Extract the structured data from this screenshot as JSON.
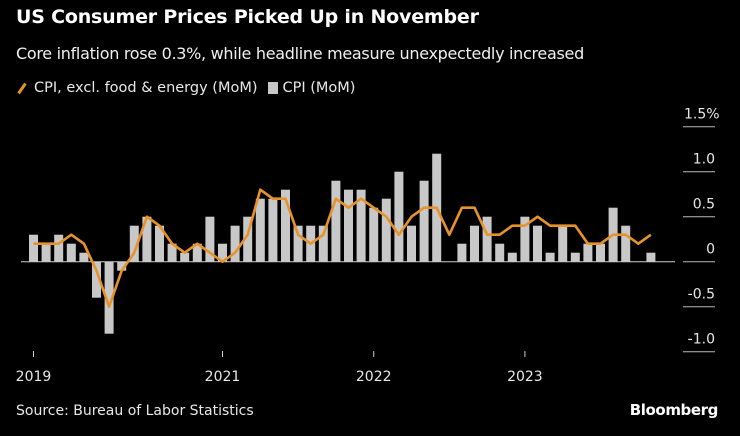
{
  "header": {
    "title": "US Consumer Prices Picked Up in November",
    "subtitle": "Core inflation rose 0.3%, while headline measure unexpectedly increased"
  },
  "footer": {
    "source": "Source: Bureau of Labor Statistics",
    "logo": "Bloomberg"
  },
  "colors": {
    "background": "#000000",
    "bars": "#c8c8c8",
    "line": "#e8922a"
  },
  "chart_data": {
    "type": "bar+line",
    "title": "US Consumer Prices Picked Up in November",
    "subtitle": "Core inflation rose 0.3%, while headline measure unexpectedly increased",
    "legend_placement": "top-left",
    "grid": false,
    "y_axis_side": "right",
    "ylim": [
      -1.0,
      1.5
    ],
    "yticks": [
      {
        "value": 1.5,
        "label": "1.5%"
      },
      {
        "value": 1.0,
        "label": "1.0"
      },
      {
        "value": 0.5,
        "label": "0.5"
      },
      {
        "value": 0,
        "label": "0"
      },
      {
        "value": -0.5,
        "label": "-0.5"
      },
      {
        "value": -1.0,
        "label": "-1.0"
      }
    ],
    "xticks": [
      {
        "x": "2019-10",
        "label": "2019"
      },
      {
        "x": "2021-01",
        "label": "2021"
      },
      {
        "x": "2022-01",
        "label": "2022"
      },
      {
        "x": "2023-01",
        "label": "2023"
      }
    ],
    "x": [
      "2019-10",
      "2019-11",
      "2019-12",
      "2020-01",
      "2020-02",
      "2020-03",
      "2020-04",
      "2020-05",
      "2020-06",
      "2020-07",
      "2020-08",
      "2020-09",
      "2020-10",
      "2020-11",
      "2020-12",
      "2021-01",
      "2021-02",
      "2021-03",
      "2021-04",
      "2021-05",
      "2021-06",
      "2021-07",
      "2021-08",
      "2021-09",
      "2021-10",
      "2021-11",
      "2021-12",
      "2022-01",
      "2022-02",
      "2022-03",
      "2022-04",
      "2022-05",
      "2022-06",
      "2022-07",
      "2022-08",
      "2022-09",
      "2022-10",
      "2022-11",
      "2022-12",
      "2023-01",
      "2023-02",
      "2023-03",
      "2023-04",
      "2023-05",
      "2023-06",
      "2023-07",
      "2023-08",
      "2023-09",
      "2023-10",
      "2023-11"
    ],
    "series": [
      {
        "name": "CPI (MoM)",
        "type": "bar",
        "values": [
          0.3,
          0.2,
          0.3,
          0.2,
          0.1,
          -0.4,
          -0.8,
          -0.1,
          0.4,
          0.5,
          0.4,
          0.2,
          0.1,
          0.2,
          0.5,
          0.2,
          0.4,
          0.5,
          0.7,
          0.7,
          0.8,
          0.4,
          0.4,
          0.4,
          0.9,
          0.8,
          0.8,
          0.6,
          0.7,
          1.0,
          0.4,
          0.9,
          1.2,
          0.0,
          0.2,
          0.4,
          0.5,
          0.2,
          0.1,
          0.5,
          0.4,
          0.1,
          0.4,
          0.1,
          0.2,
          0.2,
          0.6,
          0.4,
          0.0,
          0.1
        ]
      },
      {
        "name": "CPI, excl. food & energy (MoM)",
        "type": "line",
        "values": [
          0.2,
          0.2,
          0.2,
          0.3,
          0.2,
          -0.1,
          -0.5,
          -0.1,
          0.1,
          0.5,
          0.4,
          0.2,
          0.1,
          0.2,
          0.1,
          0.0,
          0.1,
          0.3,
          0.8,
          0.7,
          0.7,
          0.3,
          0.2,
          0.3,
          0.7,
          0.6,
          0.7,
          0.6,
          0.5,
          0.3,
          0.5,
          0.6,
          0.6,
          0.3,
          0.6,
          0.6,
          0.3,
          0.3,
          0.4,
          0.4,
          0.5,
          0.4,
          0.4,
          0.4,
          0.2,
          0.2,
          0.3,
          0.3,
          0.2,
          0.3
        ]
      }
    ]
  }
}
